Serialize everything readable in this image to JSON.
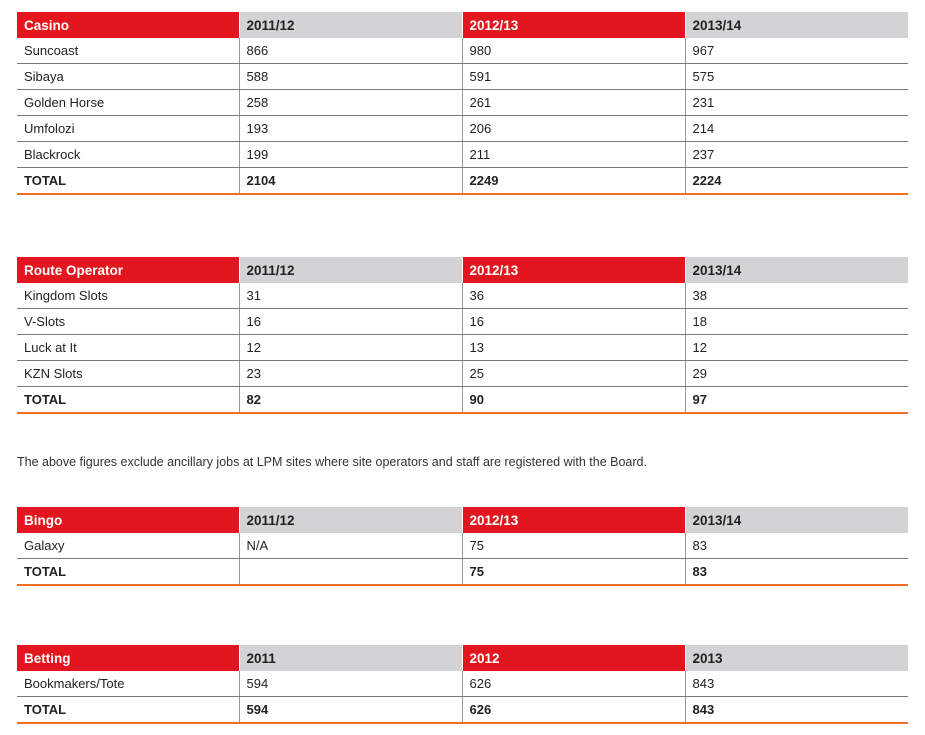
{
  "tables": [
    {
      "headers": [
        "Casino",
        "2011/12",
        "2012/13",
        "2013/14"
      ],
      "rows": [
        [
          "Suncoast",
          "866",
          "980",
          "967"
        ],
        [
          "Sibaya",
          "588",
          "591",
          "575"
        ],
        [
          "Golden Horse",
          "258",
          "261",
          "231"
        ],
        [
          "Umfolozi",
          "193",
          "206",
          "214"
        ],
        [
          "Blackrock",
          "199",
          "211",
          "237"
        ]
      ],
      "total": [
        "TOTAL",
        "2104",
        "2249",
        "2224"
      ]
    },
    {
      "headers": [
        "Route Operator",
        "2011/12",
        "2012/13",
        "2013/14"
      ],
      "rows": [
        [
          "Kingdom Slots",
          "31",
          "36",
          "38"
        ],
        [
          "V-Slots",
          "16",
          "16",
          "18"
        ],
        [
          "Luck at It",
          "12",
          "13",
          "12"
        ],
        [
          "KZN Slots",
          "23",
          "25",
          "29"
        ]
      ],
      "total": [
        "TOTAL",
        "82",
        "90",
        "97"
      ]
    },
    {
      "headers": [
        "Bingo",
        "2011/12",
        "2012/13",
        "2013/14"
      ],
      "rows": [
        [
          "Galaxy",
          "N/A",
          "75",
          "83"
        ]
      ],
      "total": [
        "TOTAL",
        "",
        "75",
        "83"
      ]
    },
    {
      "headers": [
        "Betting",
        "2011",
        "2012",
        "2013"
      ],
      "rows": [
        [
          "Bookmakers/Tote",
          "594",
          "626",
          "843"
        ]
      ],
      "total": [
        "TOTAL",
        "594",
        "626",
        "843"
      ]
    }
  ],
  "note": "The above figures exclude ancillary jobs at LPM sites where site operators and staff are registered with the Board.",
  "colors": {
    "header_red": "#e3161f",
    "header_grey": "#d1d3d4",
    "total_rule": "#f26f21"
  }
}
